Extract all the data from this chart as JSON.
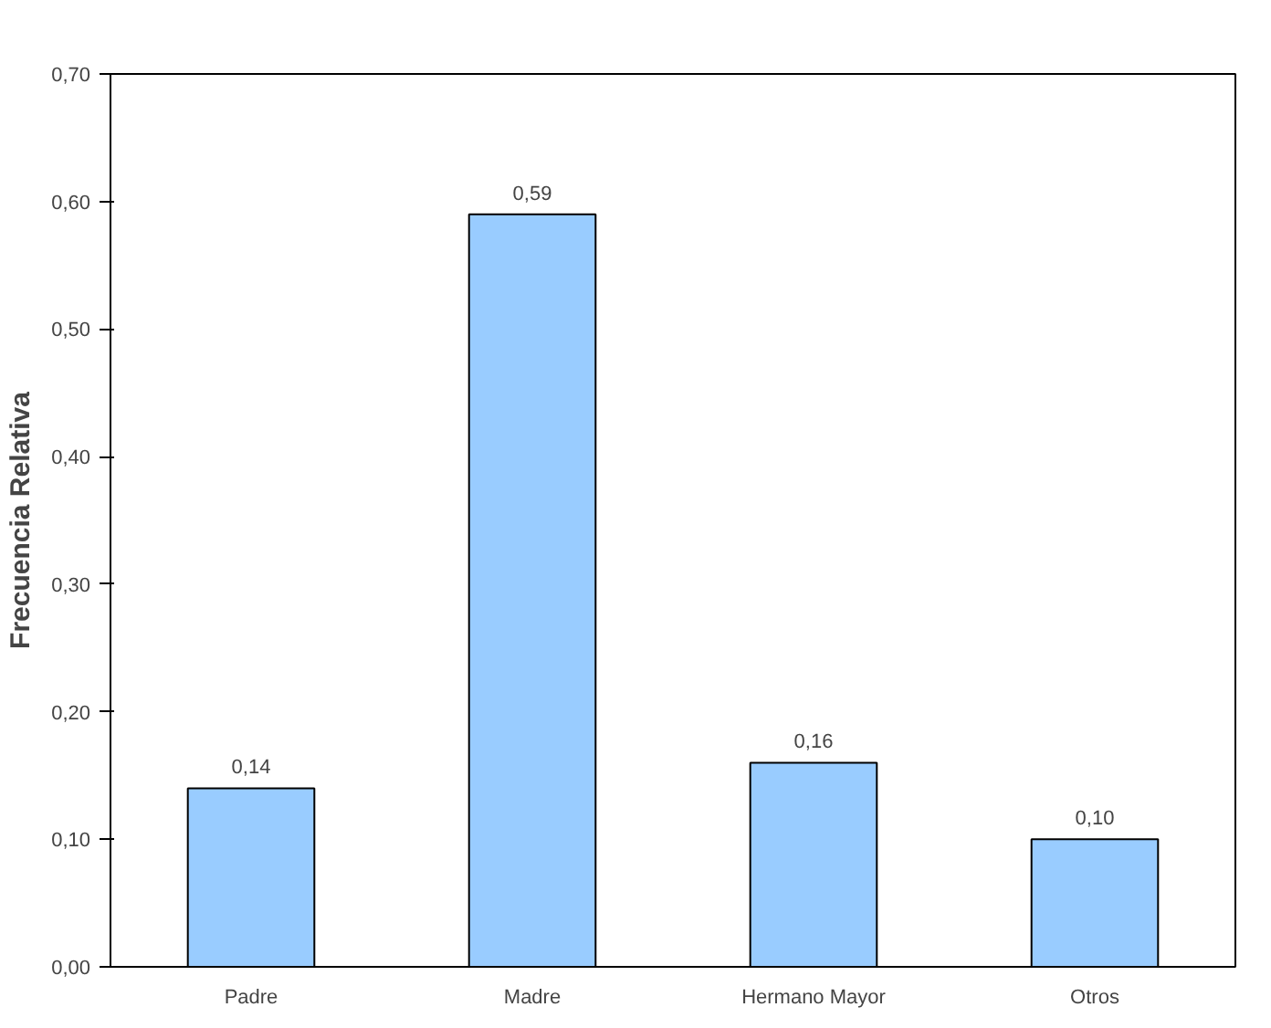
{
  "chart_data": {
    "type": "bar",
    "ylabel": "Frecuencia Relativa",
    "categories": [
      "Padre",
      "Madre",
      "Hermano Mayor",
      "Otros"
    ],
    "values": [
      0.14,
      0.59,
      0.16,
      0.1
    ],
    "value_labels": [
      "0,14",
      "0,59",
      "0,16",
      "0,10"
    ],
    "color": "#99ccff",
    "ylim": [
      0,
      0.7
    ],
    "yticks": [
      {
        "value": 0,
        "label": "0,00"
      },
      {
        "value": 0.1,
        "label": "0,10"
      },
      {
        "value": 0.2,
        "label": "0,20"
      },
      {
        "value": 0.3,
        "label": "0,30"
      },
      {
        "value": 0.4,
        "label": "0,40"
      },
      {
        "value": 0.5,
        "label": "0,50"
      },
      {
        "value": 0.6,
        "label": "0,60"
      },
      {
        "value": 0.7,
        "label": "0,70"
      }
    ],
    "grid": false
  }
}
